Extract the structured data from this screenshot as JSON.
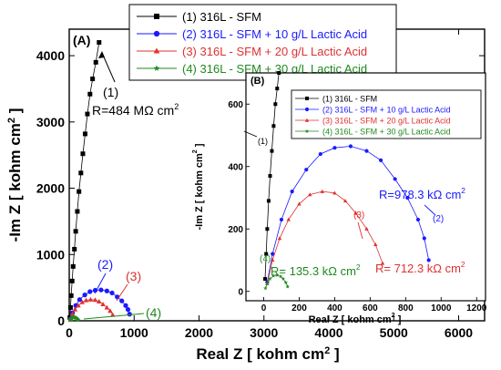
{
  "chart_data": [
    {
      "panel": "(A)",
      "type": "scatter",
      "xlabel": "Real Z [ kohm cm",
      "xlabel_sup": "2",
      "xlabel_end": " ]",
      "ylabel": "-Im Z [ kohm cm",
      "ylabel_sup": "2",
      "ylabel_end": " ]",
      "xlim": [
        0,
        6400
      ],
      "ylim": [
        0,
        4400
      ],
      "xticks": [
        0,
        1000,
        2000,
        3000,
        4000,
        5000,
        6000
      ],
      "yticks": [
        0,
        1000,
        2000,
        3000,
        4000
      ],
      "legend_position": "top-center",
      "series": [
        {
          "name": "(1) 316L - SFM",
          "color": "#000000",
          "marker": "square",
          "x": [
            10,
            20,
            30,
            45,
            60,
            80,
            100,
            125,
            150,
            180,
            210,
            245,
            280,
            320,
            360,
            410,
            460
          ],
          "y": [
            50,
            200,
            380,
            600,
            820,
            1080,
            1350,
            1650,
            1950,
            2230,
            2520,
            2820,
            3120,
            3420,
            3650,
            3900,
            4200
          ]
        },
        {
          "name": "(2) 316L - SFM + 10 g/L Lactic Acid",
          "color": "#1a1aff",
          "marker": "circle",
          "x": [
            20,
            50,
            100,
            160,
            240,
            320,
            400,
            490,
            580,
            660,
            740,
            810,
            870,
            905,
            930
          ],
          "y": [
            30,
            120,
            230,
            320,
            390,
            440,
            460,
            465,
            450,
            420,
            360,
            300,
            230,
            170,
            100
          ]
        },
        {
          "name": "(3) 316L - SFM + 20 g/L Lactic Acid",
          "color": "#e03030",
          "marker": "triangle",
          "x": [
            20,
            50,
            90,
            140,
            200,
            260,
            330,
            400,
            460,
            520,
            580,
            630,
            670
          ],
          "y": [
            25,
            100,
            170,
            230,
            280,
            310,
            320,
            315,
            290,
            250,
            200,
            150,
            90
          ]
        },
        {
          "name": "(4) 316L - SFM + 30 g/L Lactic Acid",
          "color": "#1e8a1e",
          "marker": "star",
          "x": [
            10,
            20,
            35,
            55,
            75,
            95,
            110,
            125,
            135
          ],
          "y": [
            10,
            25,
            40,
            50,
            52,
            48,
            40,
            28,
            15
          ]
        }
      ],
      "annotations": [
        {
          "label_id": "(1)",
          "text": "(1)",
          "color": "#000000"
        },
        {
          "label_id": "R1",
          "text": "R=484 MΩ cm",
          "sup": "2",
          "color": "#000000"
        },
        {
          "label_id": "(2)",
          "text": "(2)",
          "color": "#1a1aff"
        },
        {
          "label_id": "(3)",
          "text": "(3)",
          "color": "#e03030"
        },
        {
          "label_id": "(4)",
          "text": "(4)",
          "color": "#1e8a1e"
        }
      ]
    },
    {
      "panel": "(B)",
      "type": "scatter",
      "xlabel": "Real Z [ kohm cm",
      "xlabel_sup": "2",
      "xlabel_end": " ]",
      "ylabel": "-Im Z [ kohm cm",
      "ylabel_sup": "2",
      "ylabel_end": " ]",
      "xlim": [
        -100,
        1250
      ],
      "ylim": [
        -30,
        700
      ],
      "xticks": [
        0,
        200,
        400,
        600,
        800,
        1000,
        1200
      ],
      "yticks": [
        0,
        200,
        400,
        600
      ],
      "legend_position": "top",
      "series": [
        {
          "name": "(1) 316L - SFM",
          "color": "#000000",
          "marker": "square",
          "x": [
            8,
            14,
            20,
            28,
            36,
            46,
            56,
            66,
            76,
            86
          ],
          "y": [
            40,
            120,
            200,
            290,
            370,
            450,
            530,
            600,
            650,
            700
          ]
        },
        {
          "name": "(2) 316L - SFM + 10 g/L Lactic Acid",
          "color": "#1a1aff",
          "marker": "circle",
          "x": [
            20,
            50,
            100,
            160,
            240,
            320,
            400,
            490,
            580,
            660,
            740,
            810,
            870,
            905,
            930
          ],
          "y": [
            30,
            120,
            230,
            320,
            390,
            440,
            460,
            465,
            450,
            420,
            360,
            300,
            230,
            170,
            100
          ]
        },
        {
          "name": "(3) 316L - SFM + 20 g/L Lactic Acid",
          "color": "#e03030",
          "marker": "triangle",
          "x": [
            20,
            50,
            90,
            140,
            200,
            260,
            330,
            400,
            460,
            520,
            580,
            630,
            670
          ],
          "y": [
            25,
            100,
            170,
            230,
            280,
            310,
            320,
            315,
            290,
            250,
            200,
            150,
            90
          ]
        },
        {
          "name": "(4) 316L - SFM + 30 g/L Lactic Acid",
          "color": "#1e8a1e",
          "marker": "star",
          "x": [
            10,
            20,
            35,
            55,
            75,
            95,
            110,
            125,
            135
          ],
          "y": [
            10,
            25,
            40,
            50,
            52,
            48,
            40,
            28,
            15
          ]
        }
      ],
      "annotations": [
        {
          "label_id": "(1)",
          "text": "(1)",
          "color": "#000000"
        },
        {
          "label_id": "(2)",
          "text": "(2)",
          "color": "#1a1aff"
        },
        {
          "label_id": "(3)",
          "text": "(3)",
          "color": "#e03030"
        },
        {
          "label_id": "(4)",
          "text": "(4)",
          "color": "#1e8a1e"
        },
        {
          "label_id": "R2",
          "text": "R=978.3 kΩ cm",
          "sup": "2",
          "color": "#1a1aff"
        },
        {
          "label_id": "R3",
          "text": "R= 712.3 kΩ cm",
          "sup": "2",
          "color": "#e03030"
        },
        {
          "label_id": "R4",
          "text": "R= 135.3 kΩ cm",
          "sup": "2",
          "color": "#1e8a1e"
        }
      ]
    }
  ]
}
